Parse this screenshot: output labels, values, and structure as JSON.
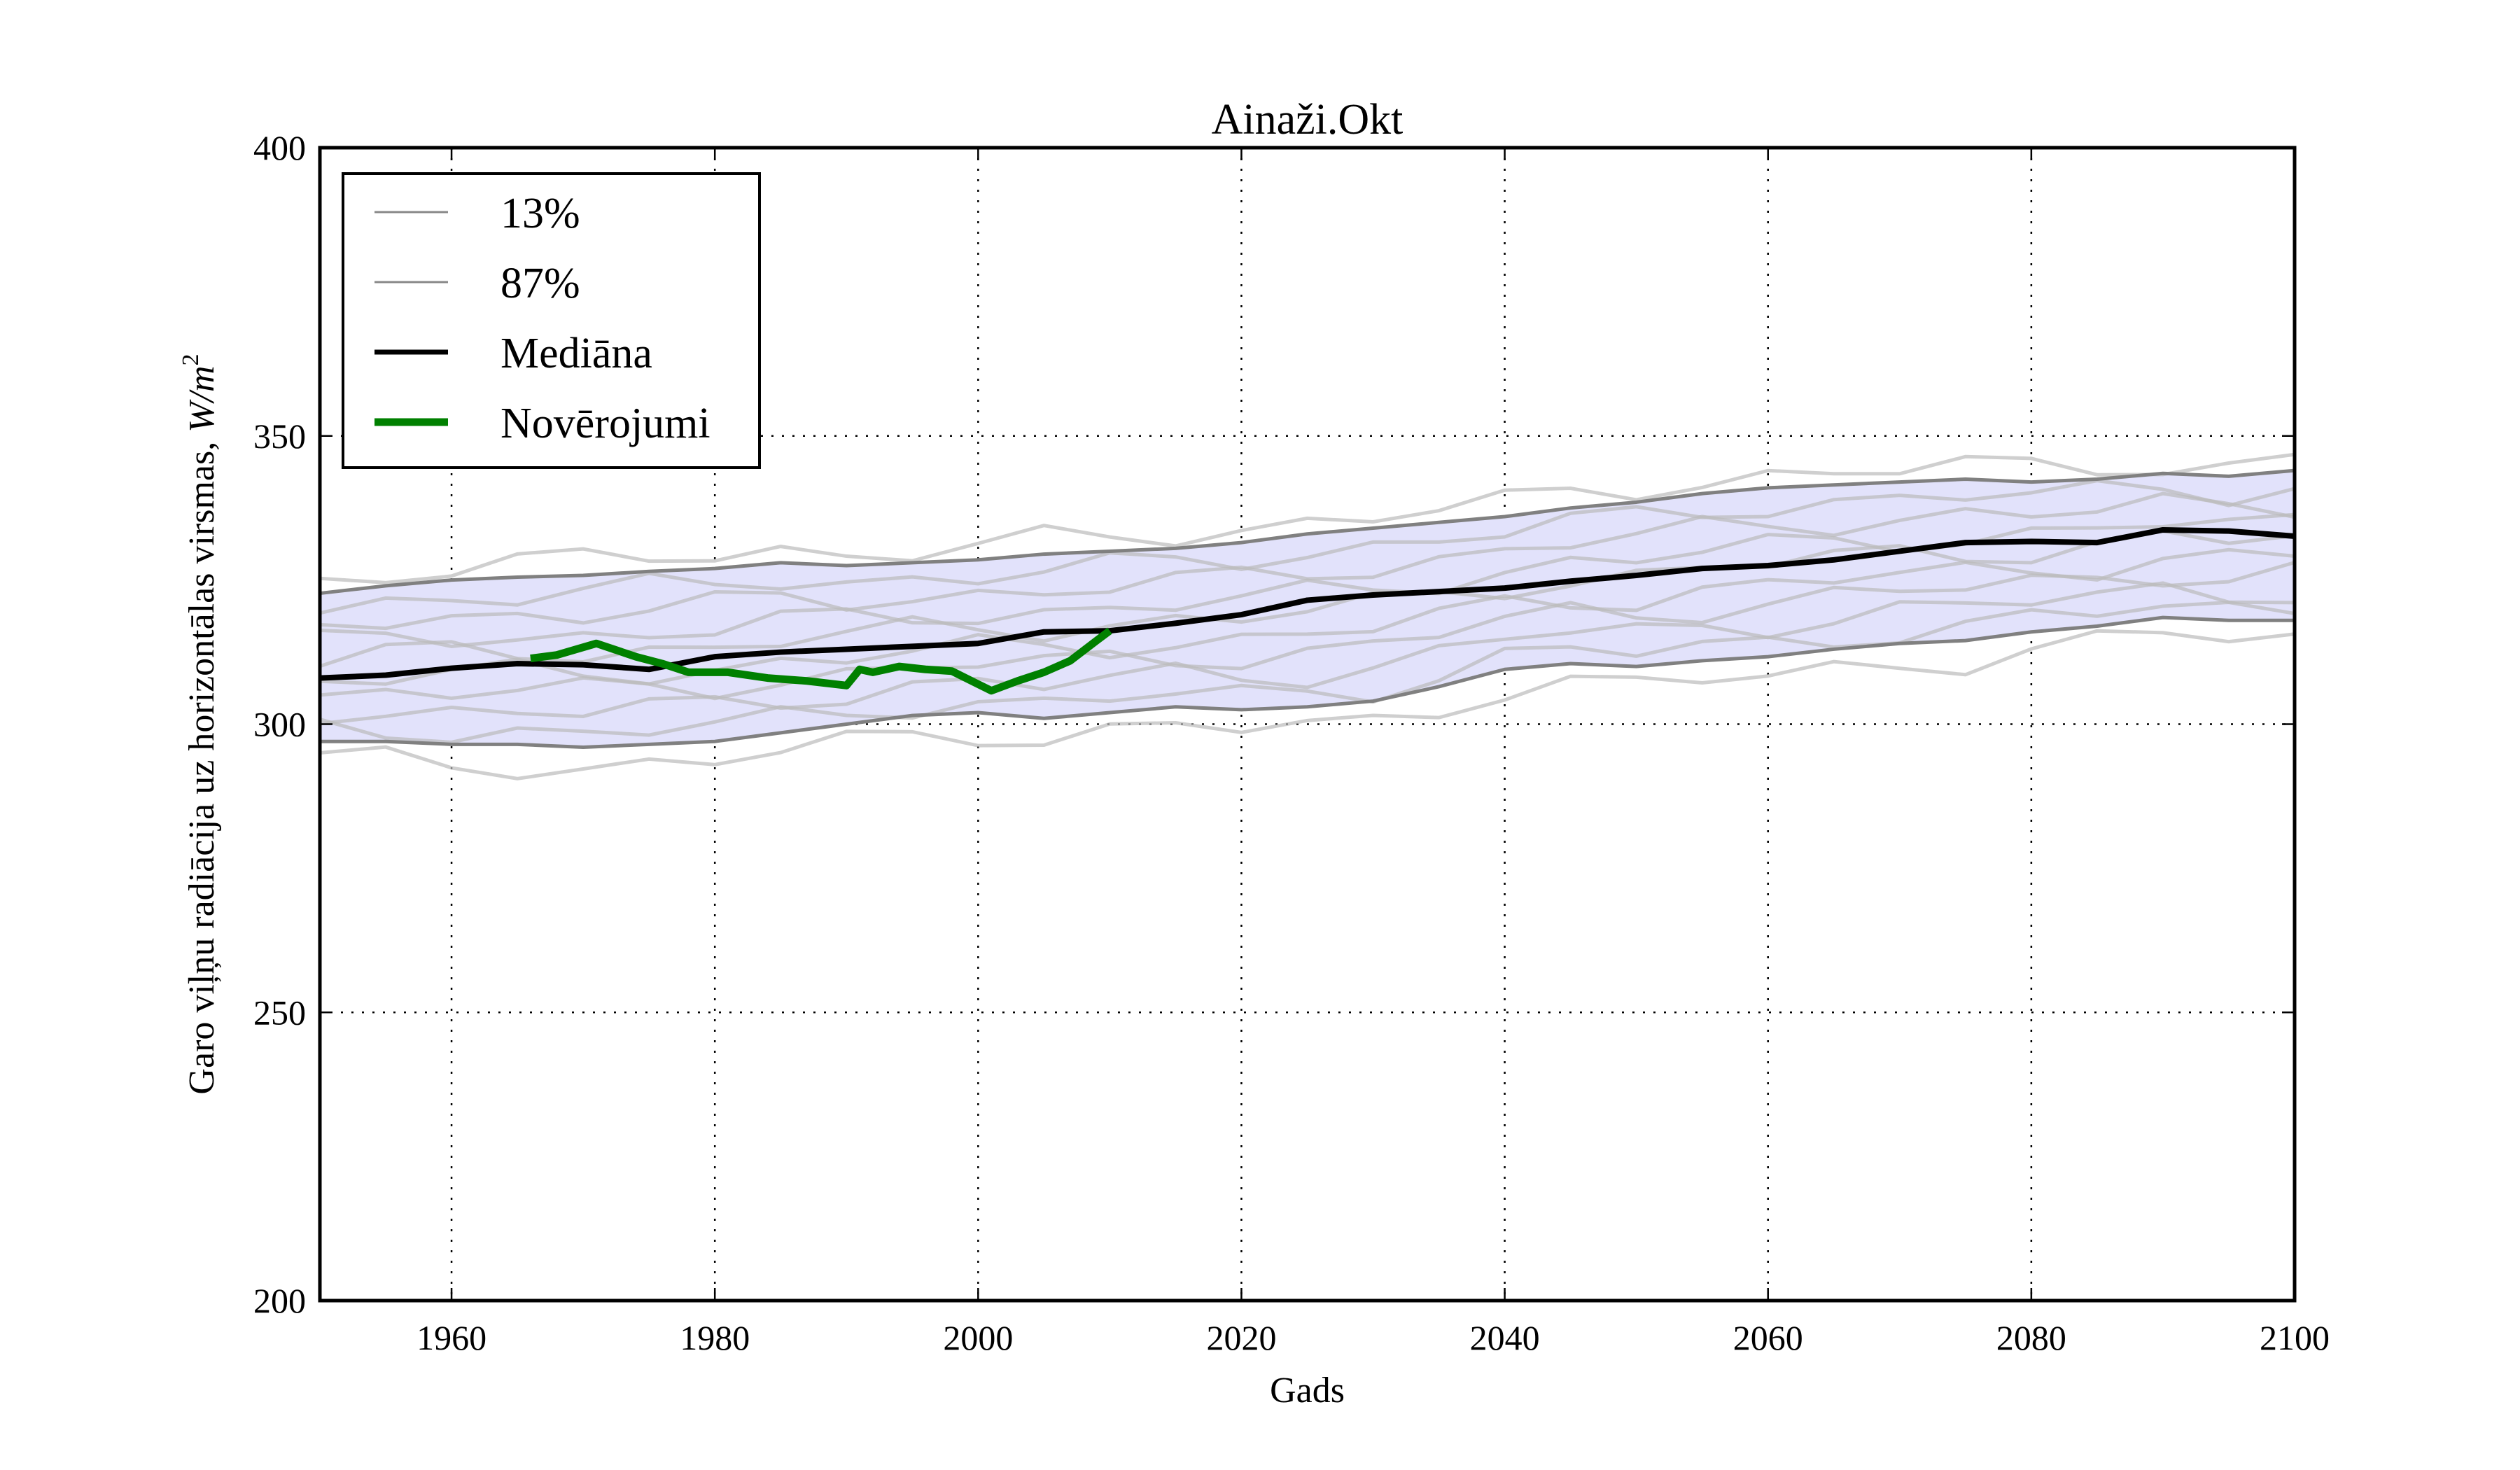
{
  "chart_data": {
    "type": "line",
    "title": "Ainaži.Okt",
    "xlabel": "Gads",
    "ylabel": "Garo viļņu radiācija uz horizontālas virsmas, W/m²",
    "ylabel_main": "Garo viļņu radiācija uz horizontālas virsmas, ",
    "ylabel_unit": "W/m",
    "ylabel_exp": "2",
    "xlim": [
      1950,
      2100
    ],
    "ylim": [
      200,
      400
    ],
    "xticks": [
      1960,
      1980,
      2000,
      2020,
      2040,
      2060,
      2080,
      2100
    ],
    "yticks": [
      200,
      250,
      300,
      350,
      400
    ],
    "grid": true,
    "legend_position": "top-left",
    "band_color": "#e2e2fb",
    "series": [
      {
        "name": "13%",
        "color": "#808080",
        "x": [
          1950,
          1955,
          1960,
          1965,
          1970,
          1975,
          1980,
          1985,
          1990,
          1995,
          2000,
          2005,
          2010,
          2015,
          2020,
          2025,
          2030,
          2035,
          2040,
          2045,
          2050,
          2055,
          2060,
          2065,
          2070,
          2075,
          2080,
          2085,
          2090,
          2095,
          2100
        ],
        "values": [
          297,
          297,
          296.5,
          296.5,
          296,
          296.5,
          297,
          298.5,
          300,
          301.5,
          302,
          301,
          302,
          303,
          302.5,
          303,
          304,
          306.5,
          309.5,
          310.5,
          310,
          311,
          311.7,
          313,
          314,
          314.5,
          316,
          317,
          318.5,
          318,
          318
        ]
      },
      {
        "name": "87%",
        "color": "#808080",
        "x": [
          1950,
          1955,
          1960,
          1965,
          1970,
          1975,
          1980,
          1985,
          1990,
          1995,
          2000,
          2005,
          2010,
          2015,
          2020,
          2025,
          2030,
          2035,
          2040,
          2045,
          2050,
          2055,
          2060,
          2065,
          2070,
          2075,
          2080,
          2085,
          2090,
          2095,
          2100
        ],
        "values": [
          322.7,
          324,
          325,
          325.5,
          325.8,
          326.5,
          327,
          328,
          327.5,
          328,
          328.5,
          329.5,
          330,
          330.5,
          331.5,
          333,
          334,
          335,
          336,
          337.5,
          338.5,
          340,
          341,
          341.5,
          342,
          342.5,
          342,
          342.5,
          343.5,
          343,
          344
        ]
      },
      {
        "name": "Mediāna",
        "color": "#000000",
        "x": [
          1950,
          1955,
          1960,
          1965,
          1970,
          1975,
          1980,
          1985,
          1990,
          1995,
          2000,
          2005,
          2010,
          2015,
          2020,
          2025,
          2030,
          2035,
          2040,
          2045,
          2050,
          2055,
          2060,
          2065,
          2070,
          2075,
          2080,
          2085,
          2090,
          2095,
          2100
        ],
        "values": [
          308,
          308.5,
          309.7,
          310.5,
          310.3,
          309.5,
          311.7,
          312.5,
          313,
          313.5,
          314,
          316,
          316.2,
          317.5,
          319,
          321.5,
          322.4,
          323,
          323.6,
          324.8,
          325.8,
          327,
          327.5,
          328.5,
          330,
          331.5,
          331.7,
          331.5,
          333.7,
          333.5,
          332.6
        ]
      },
      {
        "name": "Novērojumi",
        "color": "#008000",
        "x": [
          1966,
          1968,
          1971,
          1974,
          1976,
          1978,
          1981,
          1984,
          1987,
          1990,
          1991,
          1992,
          1994,
          1996,
          1998,
          2001,
          2003,
          2005,
          2007,
          2009,
          2010
        ],
        "values": [
          311.4,
          312,
          314,
          311.7,
          310.5,
          309,
          309,
          308,
          307.5,
          306.7,
          309.5,
          309,
          310,
          309.5,
          309.2,
          305.8,
          307.5,
          309,
          311,
          314.5,
          316.2
        ]
      }
    ],
    "ensemble_members_note": "approx. 16 light-gray model runs inside/around the band",
    "ensemble_color": "#bbbbbb"
  }
}
